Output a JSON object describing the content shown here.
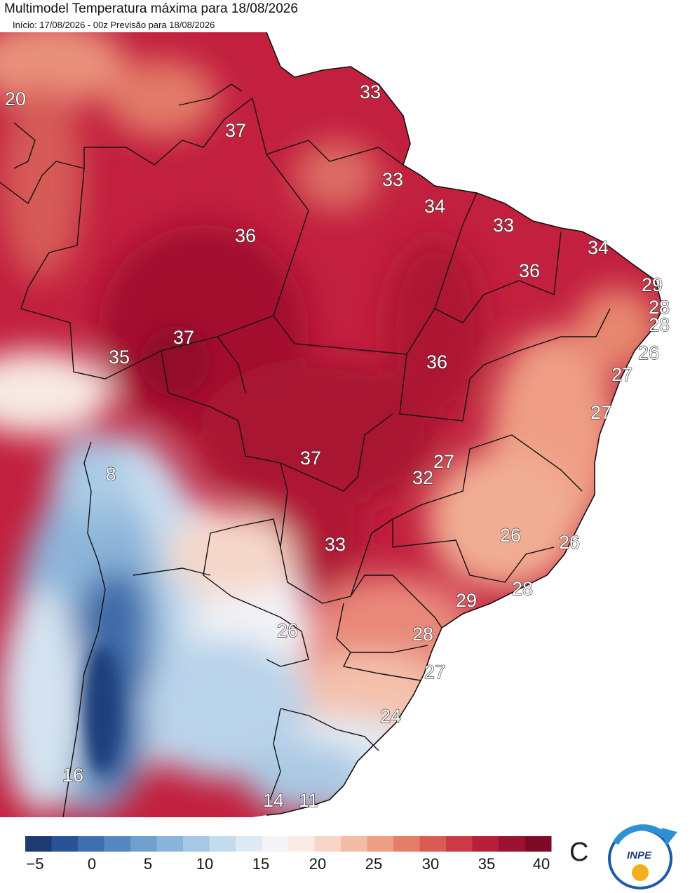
{
  "header": {
    "title": "Multimodel Temperatura máxima para 18/08/2026",
    "subtitle": "Início: 17/08/2026 - 00z  Previsão para 18/08/2026"
  },
  "map": {
    "temperature_labels": [
      {
        "text": "20"
      },
      {
        "text": "33"
      },
      {
        "text": "37"
      },
      {
        "text": "33"
      },
      {
        "text": "34"
      },
      {
        "text": "36"
      },
      {
        "text": "33"
      },
      {
        "text": "34"
      },
      {
        "text": "36"
      },
      {
        "text": "29"
      },
      {
        "text": "28"
      },
      {
        "text": "28"
      },
      {
        "text": "37"
      },
      {
        "text": "26"
      },
      {
        "text": "35"
      },
      {
        "text": "36"
      },
      {
        "text": "27"
      },
      {
        "text": "27"
      },
      {
        "text": "8"
      },
      {
        "text": "27"
      },
      {
        "text": "37"
      },
      {
        "text": "32"
      },
      {
        "text": "26"
      },
      {
        "text": "26"
      },
      {
        "text": "33"
      },
      {
        "text": "28"
      },
      {
        "text": "29"
      },
      {
        "text": "26"
      },
      {
        "text": "28"
      },
      {
        "text": "27"
      },
      {
        "text": "24"
      },
      {
        "text": "16"
      },
      {
        "text": "14"
      },
      {
        "text": "11"
      }
    ]
  },
  "colorbar": {
    "ticks": [
      "−5",
      "0",
      "5",
      "10",
      "15",
      "20",
      "25",
      "30",
      "35",
      "40"
    ],
    "unit": "C",
    "colors": [
      "#1d3a72",
      "#2a5397",
      "#3d6eaf",
      "#5588c0",
      "#6f9fcd",
      "#8ab4d9",
      "#a6c8e4",
      "#c3dbee",
      "#dde9f3",
      "#f2f4f7",
      "#f9ebe4",
      "#f7d6c7",
      "#f3bda5",
      "#ee9f83",
      "#e57e66",
      "#d95b52",
      "#cb3a45",
      "#b71f3b",
      "#9d1231",
      "#7f0a28"
    ]
  },
  "logo": {
    "text": "INPE"
  }
}
